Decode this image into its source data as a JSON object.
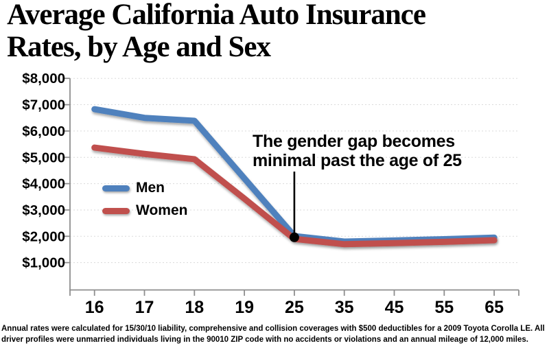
{
  "title": {
    "line1": "Average California Auto Insurance",
    "line2": "Rates, by Age and Sex"
  },
  "chart_data": {
    "type": "line",
    "categories": [
      "16",
      "17",
      "18",
      "19",
      "25",
      "35",
      "45",
      "55",
      "65"
    ],
    "series": [
      {
        "name": "Men",
        "color": "#4F81BD",
        "values": [
          6830,
          6500,
          6390,
          4200,
          2010,
          1800,
          1840,
          1890,
          1950
        ]
      },
      {
        "name": "Women",
        "color": "#C0504D",
        "values": [
          5370,
          5130,
          4930,
          3430,
          1900,
          1700,
          1740,
          1790,
          1850
        ]
      }
    ],
    "y_ticks": [
      {
        "label": "$8,000",
        "value": 8000
      },
      {
        "label": "$7,000",
        "value": 7000
      },
      {
        "label": "$6,000",
        "value": 6000
      },
      {
        "label": "$5,000",
        "value": 5000
      },
      {
        "label": "$4,000",
        "value": 4000
      },
      {
        "label": "$3,000",
        "value": 3000
      },
      {
        "label": "$2,000",
        "value": 2000
      },
      {
        "label": "$1,000",
        "value": 1000
      }
    ],
    "ylim": [
      0,
      8000
    ],
    "grid": true,
    "legend_position": "inside-left",
    "axis_color": "#8e8e8e",
    "gridline_color": "#dadada"
  },
  "annotation": {
    "line1": "The gender gap becomes",
    "line2": "minimal past the age of 25",
    "points_to": {
      "category": "25",
      "value": 2000
    }
  },
  "footer": {
    "line1": "Annual rates were calculated for 15/30/10 liability, comprehensive and collision coverages with $500 deductibles for a 2009 Toyota Corolla LE. All",
    "line2": "driver profiles were unmarried individuals living in the 90010 ZIP code with no accidents or violations and an annual mileage of 12,000 miles."
  }
}
